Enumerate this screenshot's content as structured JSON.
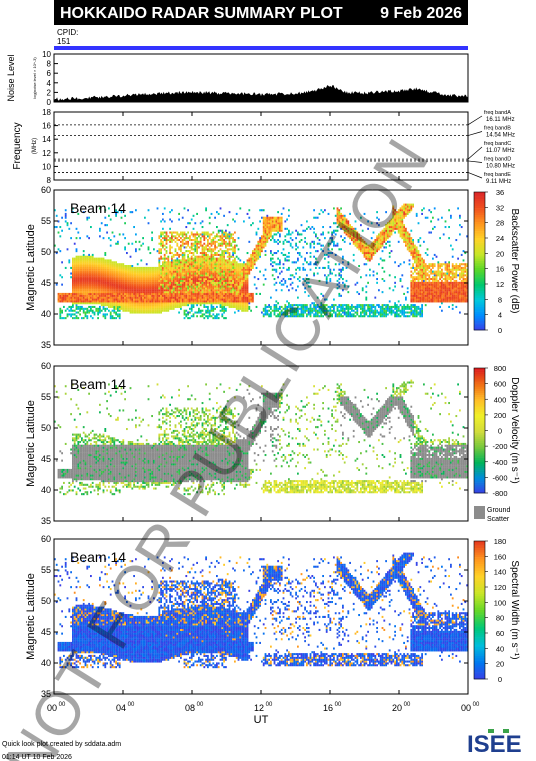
{
  "header": {
    "title": "HOKKAIDO RADAR SUMMARY PLOT",
    "date": "9 Feb 2026",
    "cpid_label": "CPID:",
    "cpid_value": "151"
  },
  "colors": {
    "header_bg": "#000000",
    "header_text": "#ffffff",
    "cpid_bar": "#3333ff",
    "ground_scatter": "#8c8c8c"
  },
  "x_axis": {
    "label": "UT",
    "ticks": [
      {
        "h": 0,
        "main": "00",
        "sup": "00"
      },
      {
        "h": 4,
        "main": "04",
        "sup": "00"
      },
      {
        "h": 8,
        "main": "08",
        "sup": "00"
      },
      {
        "h": 12,
        "main": "12",
        "sup": "00"
      },
      {
        "h": 16,
        "main": "16",
        "sup": "00"
      },
      {
        "h": 20,
        "main": "20",
        "sup": "00"
      },
      {
        "h": 24,
        "main": "00",
        "sup": "00"
      }
    ],
    "range": [
      0,
      24
    ]
  },
  "noise": {
    "ylabel": "Noise Level",
    "sublabel": "log(noise level × 10^-3)",
    "ticks": [
      "0",
      "2",
      "4",
      "6",
      "8",
      "10"
    ],
    "ylim": [
      0,
      10
    ]
  },
  "frequency": {
    "ylabel": "Frequency",
    "unit": "(MHz)",
    "ticks": [
      "8",
      "10",
      "12",
      "14",
      "16",
      "18"
    ],
    "ylim": [
      8,
      18
    ],
    "bands": [
      {
        "name": "freq bandA",
        "value": "16.11 MHz",
        "mhz": 16.11
      },
      {
        "name": "freq bandB",
        "value": "14.54 MHz",
        "mhz": 14.54
      },
      {
        "name": "freq bandC",
        "value": "11.07 MHz",
        "mhz": 11.07
      },
      {
        "name": "freq bandD",
        "value": "10.80 MHz",
        "mhz": 10.8
      },
      {
        "name": "freq bandE",
        "value": "9.11 MHz",
        "mhz": 9.11
      }
    ]
  },
  "panels": [
    {
      "beam": "Beam 14",
      "ylabel": "Magnetic Latitude",
      "cb_label": "Backscatter Power (dB)",
      "cb_ticks": [
        "0",
        "4",
        "8",
        "12",
        "16",
        "20",
        "24",
        "28",
        "32",
        "36"
      ],
      "ground_scatter": false
    },
    {
      "beam": "Beam 14",
      "ylabel": "Magnetic Latitude",
      "cb_label": "Doppler Velocity (m s⁻¹)",
      "cb_ticks": [
        "-800",
        "-600",
        "-400",
        "-200",
        "0",
        "200",
        "400",
        "600",
        "800"
      ],
      "ground_scatter": true,
      "gs_label_1": "Ground",
      "gs_label_2": "Scatter"
    },
    {
      "beam": "Beam 14",
      "ylabel": "Magnetic Latitude",
      "cb_label": "Spectral Width (m s⁻¹)",
      "cb_ticks": [
        "0",
        "20",
        "40",
        "60",
        "80",
        "100",
        "120",
        "140",
        "160",
        "180"
      ],
      "ground_scatter": false
    }
  ],
  "lat_ticks": [
    "35",
    "40",
    "45",
    "50",
    "55",
    "60"
  ],
  "watermark": "NOT FOR PUBLICATION",
  "footer": {
    "credit": "Quick look plot created by sddata.adm",
    "timestamp": "01:14 UT 10 Feb 2026",
    "logo": "ISEE"
  },
  "chart_data": [
    {
      "type": "area",
      "title": "Noise Level",
      "x_unit": "UT hours",
      "ylim": [
        0,
        10
      ],
      "x": [
        0,
        2,
        4,
        6,
        8,
        10,
        12,
        13,
        14,
        15,
        16,
        17,
        18,
        19,
        20,
        21,
        22,
        23,
        24
      ],
      "values": [
        0.6,
        0.9,
        1.3,
        1.8,
        2.1,
        1.8,
        1.6,
        1.7,
        1.8,
        2.2,
        3.5,
        2.0,
        1.9,
        2.1,
        2.3,
        2.8,
        2.0,
        1.4,
        1.2
      ]
    },
    {
      "type": "line",
      "title": "Frequency (MHz)",
      "ylim": [
        8,
        18
      ],
      "series": [
        {
          "name": "freq bandA",
          "values": [
            16.11
          ]
        },
        {
          "name": "freq bandB",
          "values": [
            14.54
          ]
        },
        {
          "name": "freq bandC",
          "values": [
            11.07
          ]
        },
        {
          "name": "freq bandD",
          "values": [
            10.8
          ]
        },
        {
          "name": "freq bandE",
          "values": [
            9.11
          ]
        }
      ]
    },
    {
      "type": "heatmap",
      "title": "Backscatter Power (dB)",
      "xlabel": "UT",
      "ylabel": "Magnetic Latitude",
      "xlim": [
        0,
        24
      ],
      "ylim": [
        35,
        60
      ],
      "clim": [
        0,
        36
      ]
    },
    {
      "type": "heatmap",
      "title": "Doppler Velocity (m s⁻¹)",
      "xlabel": "UT",
      "ylabel": "Magnetic Latitude",
      "xlim": [
        0,
        24
      ],
      "ylim": [
        35,
        60
      ],
      "clim": [
        -800,
        800
      ]
    },
    {
      "type": "heatmap",
      "title": "Spectral Width (m s⁻¹)",
      "xlabel": "UT",
      "ylabel": "Magnetic Latitude",
      "xlim": [
        0,
        24
      ],
      "ylim": [
        35,
        60
      ],
      "clim": [
        0,
        180
      ]
    }
  ]
}
